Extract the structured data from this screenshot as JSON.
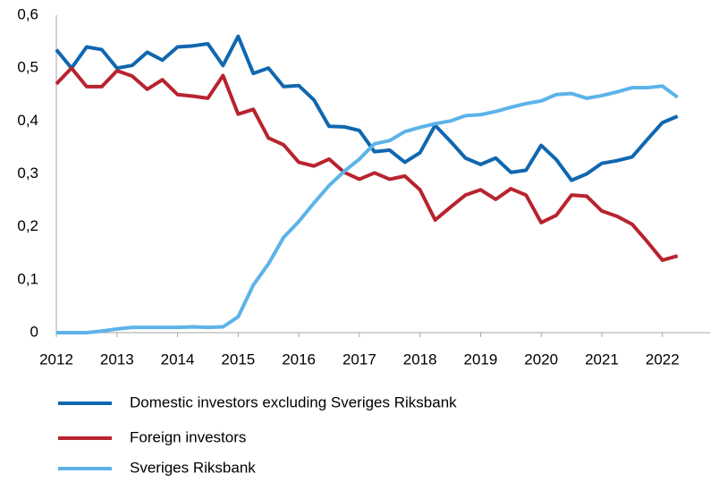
{
  "chart_data": {
    "type": "line",
    "x": [
      2012,
      2012.25,
      2012.5,
      2012.75,
      2013,
      2013.25,
      2013.5,
      2013.75,
      2014,
      2014.25,
      2014.5,
      2014.75,
      2015,
      2015.25,
      2015.5,
      2015.75,
      2016,
      2016.25,
      2016.5,
      2016.75,
      2017,
      2017.25,
      2017.5,
      2017.75,
      2018,
      2018.25,
      2018.5,
      2018.75,
      2019,
      2019.25,
      2019.5,
      2019.75,
      2020,
      2020.25,
      2020.5,
      2020.75,
      2021,
      2021.25,
      2021.5,
      2021.75,
      2022,
      2022.25
    ],
    "series": [
      {
        "name": "Domestic investors excluding Sveriges Riksbank",
        "color": "#1067b0",
        "values": [
          0.535,
          0.5,
          0.54,
          0.535,
          0.5,
          0.505,
          0.53,
          0.515,
          0.54,
          0.542,
          0.546,
          0.505,
          0.56,
          0.49,
          0.5,
          0.465,
          0.467,
          0.44,
          0.39,
          0.389,
          0.382,
          0.342,
          0.345,
          0.322,
          0.34,
          0.392,
          0.362,
          0.33,
          0.318,
          0.33,
          0.303,
          0.307,
          0.354,
          0.327,
          0.288,
          0.3,
          0.32,
          0.325,
          0.332,
          0.365,
          0.397,
          0.409
        ]
      },
      {
        "name": "Foreign investors",
        "color": "#b8232f",
        "values": [
          0.47,
          0.5,
          0.465,
          0.465,
          0.495,
          0.485,
          0.46,
          0.478,
          0.45,
          0.447,
          0.443,
          0.486,
          0.413,
          0.422,
          0.368,
          0.355,
          0.322,
          0.315,
          0.328,
          0.303,
          0.29,
          0.302,
          0.29,
          0.296,
          0.27,
          0.213,
          0.237,
          0.26,
          0.27,
          0.252,
          0.272,
          0.26,
          0.208,
          0.222,
          0.26,
          0.258,
          0.23,
          0.22,
          0.205,
          0.172,
          0.137,
          0.145
        ]
      },
      {
        "name": "Sveriges Riksbank",
        "color": "#5cb3e8",
        "values": [
          0,
          0,
          0,
          0.003,
          0.007,
          0.01,
          0.01,
          0.01,
          0.01,
          0.011,
          0.01,
          0.011,
          0.03,
          0.09,
          0.13,
          0.18,
          0.21,
          0.245,
          0.278,
          0.305,
          0.328,
          0.357,
          0.363,
          0.38,
          0.388,
          0.395,
          0.4,
          0.41,
          0.412,
          0.418,
          0.426,
          0.433,
          0.438,
          0.45,
          0.452,
          0.443,
          0.448,
          0.455,
          0.463,
          0.463,
          0.466,
          0.445
        ]
      }
    ],
    "xlim": [
      2012,
      2022.8
    ],
    "xticks": [
      2012,
      2013,
      2014,
      2015,
      2016,
      2017,
      2018,
      2019,
      2020,
      2021,
      2022
    ],
    "ylim": [
      0,
      0.6
    ],
    "yticks": [
      0,
      {
        "value": 0.1,
        "label": "0,1"
      },
      {
        "value": 0.2,
        "label": "0,2"
      },
      {
        "value": 0.3,
        "label": "0,3"
      },
      {
        "value": 0.4,
        "label": "0,4"
      },
      {
        "value": 0.5,
        "label": "0,5"
      },
      {
        "value": 0.6,
        "label": "0,6"
      }
    ],
    "grid": false
  }
}
